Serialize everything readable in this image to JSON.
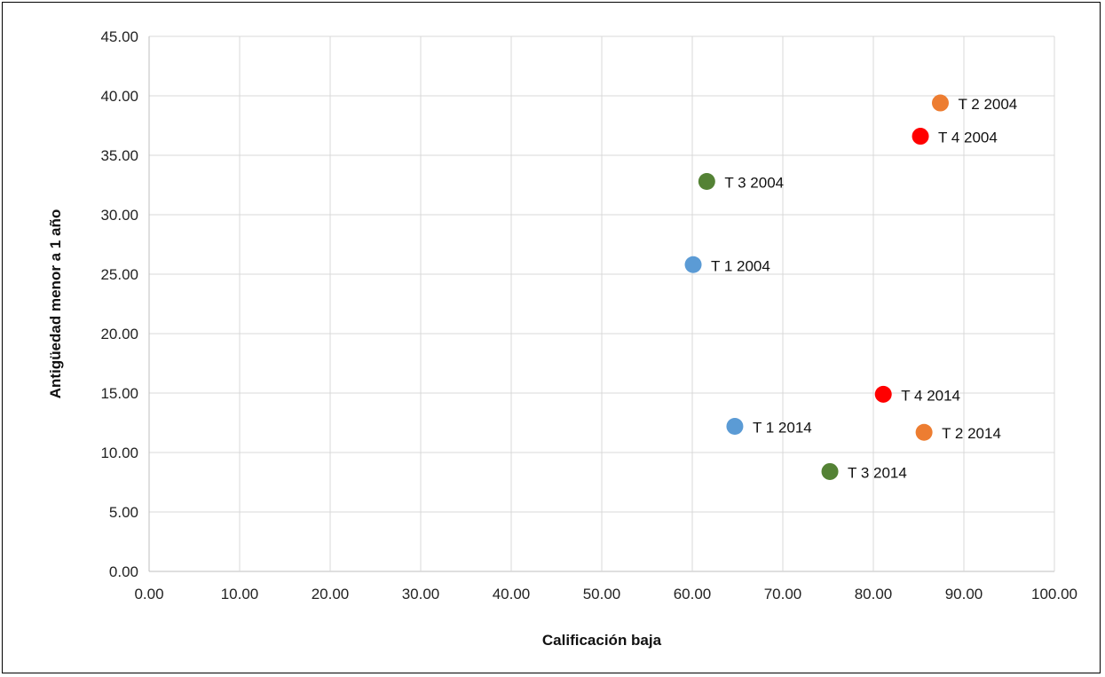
{
  "chart_data": {
    "type": "scatter",
    "xlabel": "Calificación  baja",
    "ylabel": "Antigüedad menor a 1 año",
    "xlim": [
      0,
      100
    ],
    "ylim": [
      0,
      45
    ],
    "x_ticks": [
      "0.00",
      "10.00",
      "20.00",
      "30.00",
      "40.00",
      "50.00",
      "60.00",
      "70.00",
      "80.00",
      "90.00",
      "100.00"
    ],
    "y_ticks": [
      "0.00",
      "5.00",
      "10.00",
      "15.00",
      "20.00",
      "25.00",
      "30.00",
      "35.00",
      "40.00",
      "45.00"
    ],
    "grid": true,
    "legend": "none",
    "points": [
      {
        "label": "T 1 2004",
        "x": 60.1,
        "y": 25.8,
        "color": "#5b9bd5"
      },
      {
        "label": "T 2 2004",
        "x": 87.4,
        "y": 39.4,
        "color": "#ed7d31"
      },
      {
        "label": "T 3 2004",
        "x": 61.6,
        "y": 32.8,
        "color": "#548235"
      },
      {
        "label": "T 4 2004",
        "x": 85.2,
        "y": 36.6,
        "color": "#ff0000"
      },
      {
        "label": "T 1 2014",
        "x": 64.7,
        "y": 12.2,
        "color": "#5b9bd5"
      },
      {
        "label": "T 2 2014",
        "x": 85.6,
        "y": 11.7,
        "color": "#ed7d31"
      },
      {
        "label": "T 3 2014",
        "x": 75.2,
        "y": 8.4,
        "color": "#548235"
      },
      {
        "label": "T 4 2014",
        "x": 81.1,
        "y": 14.9,
        "color": "#ff0000"
      }
    ]
  }
}
